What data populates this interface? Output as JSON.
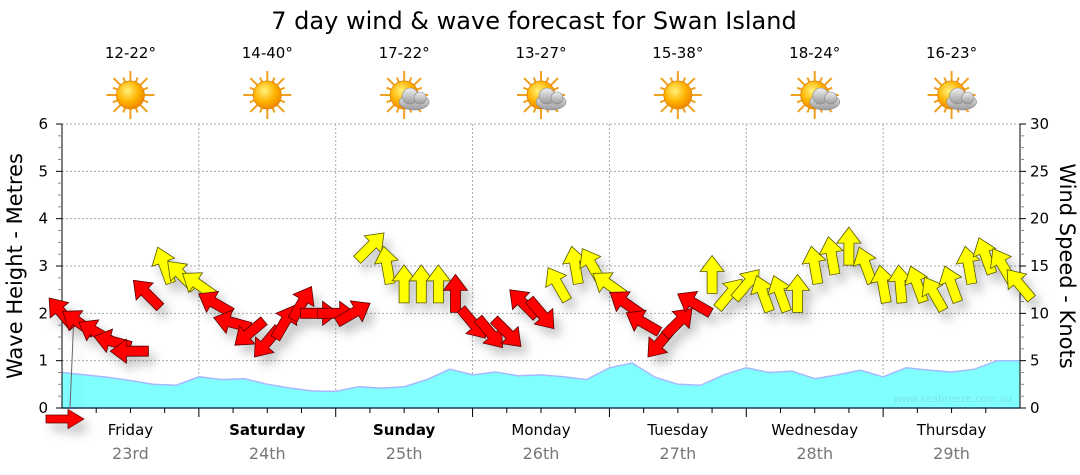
{
  "chart_data": {
    "type": "line",
    "title": "7 day wind & wave forecast for Swan Island",
    "ylabel_left": "Wave Height - Metres",
    "ylabel_right": "Wind Speed - Knots",
    "ylim_left": [
      0,
      6
    ],
    "ylim_right": [
      0,
      30
    ],
    "yticks_left": [
      "0",
      "1",
      "2",
      "3",
      "4",
      "5",
      "6"
    ],
    "yticks_right": [
      "0",
      "5",
      "10",
      "15",
      "20",
      "25",
      "30"
    ],
    "grid": true,
    "watermark": "www.seabreeze.com.au",
    "days": [
      {
        "day": "Friday",
        "date": "23rd",
        "bold": false,
        "temp": "12-22°",
        "weather": "sunny"
      },
      {
        "day": "Saturday",
        "date": "24th",
        "bold": true,
        "temp": "14-40°",
        "weather": "sunny"
      },
      {
        "day": "Sunday",
        "date": "25th",
        "bold": true,
        "temp": "17-22°",
        "weather": "partly-cloudy"
      },
      {
        "day": "Monday",
        "date": "26th",
        "bold": false,
        "temp": "13-27°",
        "weather": "partly-cloudy"
      },
      {
        "day": "Tuesday",
        "date": "27th",
        "bold": false,
        "temp": "15-38°",
        "weather": "sunny"
      },
      {
        "day": "Wednesday",
        "date": "28th",
        "bold": false,
        "temp": "18-24°",
        "weather": "partly-cloudy"
      },
      {
        "day": "Thursday",
        "date": "29th",
        "bold": false,
        "temp": "16-23°",
        "weather": "partly-cloudy"
      }
    ],
    "wave_series": {
      "name": "Wave Height (m)",
      "hours_step": 4,
      "values": [
        0.75,
        0.7,
        0.65,
        0.58,
        0.5,
        0.48,
        0.66,
        0.6,
        0.62,
        0.5,
        0.42,
        0.36,
        0.35,
        0.45,
        0.42,
        0.45,
        0.6,
        0.82,
        0.7,
        0.76,
        0.68,
        0.7,
        0.66,
        0.6,
        0.85,
        0.95,
        0.65,
        0.5,
        0.48,
        0.7,
        0.85,
        0.75,
        0.78,
        0.62,
        0.7,
        0.8,
        0.66,
        0.85,
        0.8,
        0.76,
        0.82,
        1.0,
        1.0
      ]
    },
    "wind_series": {
      "name": "Wind (knots)",
      "hours_step": 3,
      "colors": {
        "offshore": "#ff0000",
        "onshore": "#ffff00"
      },
      "points": [
        {
          "kt": 10,
          "dir": -40,
          "c": "offshore"
        },
        {
          "kt": 9,
          "dir": -55,
          "c": "offshore"
        },
        {
          "kt": 8,
          "dir": -60,
          "c": "offshore"
        },
        {
          "kt": 7,
          "dir": -75,
          "c": "offshore"
        },
        {
          "kt": 6,
          "dir": -90,
          "c": "offshore"
        },
        {
          "kt": 12,
          "dir": -45,
          "c": "offshore"
        },
        {
          "kt": 15,
          "dir": -20,
          "c": "onshore"
        },
        {
          "kt": 14,
          "dir": -45,
          "c": "onshore"
        },
        {
          "kt": 13,
          "dir": -55,
          "c": "onshore"
        },
        {
          "kt": 11,
          "dir": -60,
          "c": "offshore"
        },
        {
          "kt": 9,
          "dir": -75,
          "c": "offshore"
        },
        {
          "kt": 8,
          "dir": -130,
          "c": "offshore"
        },
        {
          "kt": 7,
          "dir": -140,
          "c": "offshore"
        },
        {
          "kt": 9,
          "dir": 30,
          "c": "offshore"
        },
        {
          "kt": 11,
          "dir": 30,
          "c": "offshore"
        },
        {
          "kt": 10,
          "dir": 90,
          "c": "offshore"
        },
        {
          "kt": 10,
          "dir": 90,
          "c": "offshore"
        },
        {
          "kt": 10,
          "dir": 60,
          "c": "offshore"
        },
        {
          "kt": 17,
          "dir": 45,
          "c": "onshore"
        },
        {
          "kt": 15,
          "dir": -10,
          "c": "onshore"
        },
        {
          "kt": 13,
          "dir": 0,
          "c": "onshore"
        },
        {
          "kt": 13,
          "dir": 0,
          "c": "onshore"
        },
        {
          "kt": 13,
          "dir": 0,
          "c": "onshore"
        },
        {
          "kt": 12,
          "dir": 0,
          "c": "offshore"
        },
        {
          "kt": 9,
          "dir": 140,
          "c": "offshore"
        },
        {
          "kt": 8,
          "dir": 140,
          "c": "offshore"
        },
        {
          "kt": 8,
          "dir": 135,
          "c": "offshore"
        },
        {
          "kt": 11,
          "dir": -45,
          "c": "offshore"
        },
        {
          "kt": 10,
          "dir": 140,
          "c": "offshore"
        },
        {
          "kt": 13,
          "dir": -30,
          "c": "onshore"
        },
        {
          "kt": 15,
          "dir": -10,
          "c": "onshore"
        },
        {
          "kt": 15,
          "dir": -30,
          "c": "onshore"
        },
        {
          "kt": 13,
          "dir": -55,
          "c": "onshore"
        },
        {
          "kt": 11,
          "dir": -55,
          "c": "offshore"
        },
        {
          "kt": 9,
          "dir": -60,
          "c": "offshore"
        },
        {
          "kt": 7,
          "dir": -140,
          "c": "offshore"
        },
        {
          "kt": 9,
          "dir": 45,
          "c": "offshore"
        },
        {
          "kt": 11,
          "dir": -60,
          "c": "offshore"
        },
        {
          "kt": 14,
          "dir": 0,
          "c": "onshore"
        },
        {
          "kt": 12,
          "dir": 40,
          "c": "onshore"
        },
        {
          "kt": 13,
          "dir": 40,
          "c": "onshore"
        },
        {
          "kt": 12,
          "dir": -20,
          "c": "onshore"
        },
        {
          "kt": 12,
          "dir": -20,
          "c": "onshore"
        },
        {
          "kt": 12,
          "dir": 0,
          "c": "onshore"
        },
        {
          "kt": 15,
          "dir": -10,
          "c": "onshore"
        },
        {
          "kt": 16,
          "dir": -10,
          "c": "onshore"
        },
        {
          "kt": 17,
          "dir": 0,
          "c": "onshore"
        },
        {
          "kt": 15,
          "dir": -20,
          "c": "onshore"
        },
        {
          "kt": 13,
          "dir": -10,
          "c": "onshore"
        },
        {
          "kt": 13,
          "dir": -5,
          "c": "onshore"
        },
        {
          "kt": 13,
          "dir": -20,
          "c": "onshore"
        },
        {
          "kt": 12,
          "dir": -30,
          "c": "onshore"
        },
        {
          "kt": 13,
          "dir": -20,
          "c": "onshore"
        },
        {
          "kt": 15,
          "dir": -10,
          "c": "onshore"
        },
        {
          "kt": 16,
          "dir": -20,
          "c": "onshore"
        },
        {
          "kt": 15,
          "dir": -30,
          "c": "onshore"
        },
        {
          "kt": 13,
          "dir": -40,
          "c": "onshore"
        }
      ]
    },
    "colors": {
      "wave_fill": "#80ffff",
      "wave_line": "#a8b8ff",
      "grid": "#aaaaaa"
    }
  }
}
